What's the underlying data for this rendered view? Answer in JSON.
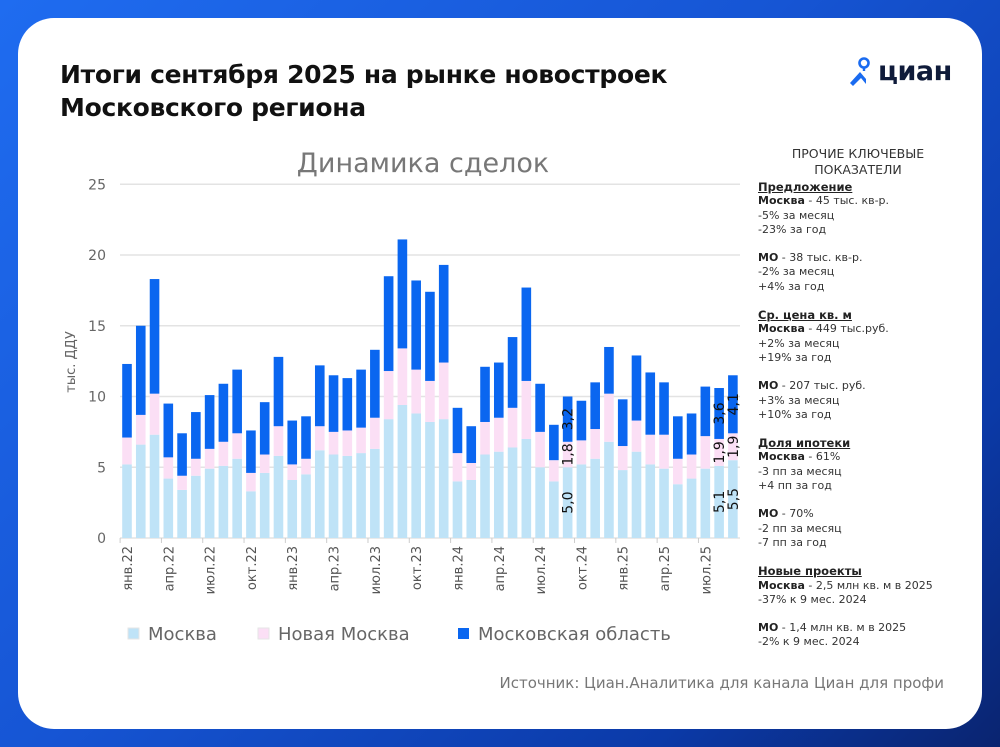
{
  "header": {
    "title_line1": "Итоги сентября 2025 на рынке новостроек",
    "title_line2": "Московского региона",
    "logo_text": "циан"
  },
  "chart_data": {
    "type": "bar",
    "stacked": true,
    "title": "Динамика сделок",
    "ylabel": "тыс. ДДУ",
    "xlabel": "",
    "ylim": [
      0,
      25
    ],
    "yticks": [
      0,
      5,
      10,
      15,
      20,
      25
    ],
    "grid": true,
    "legend_position": "bottom",
    "x": [
      "янв.22",
      "фев.22",
      "мар.22",
      "апр.22",
      "май.22",
      "июн.22",
      "июл.22",
      "авг.22",
      "сен.22",
      "окт.22",
      "ноя.22",
      "дек.22",
      "янв.23",
      "фев.23",
      "мар.23",
      "апр.23",
      "май.23",
      "июн.23",
      "июл.23",
      "авг.23",
      "сен.23",
      "окт.23",
      "ноя.23",
      "дек.23",
      "янв.24",
      "фев.24",
      "мар.24",
      "апр.24",
      "май.24",
      "июн.24",
      "июл.24",
      "авг.24",
      "сен.24",
      "окт.24",
      "ноя.24",
      "дек.24",
      "янв.25",
      "фев.25",
      "мар.25",
      "апр.25",
      "май.25",
      "июн.25",
      "июл.25",
      "авг.25",
      "сен.25"
    ],
    "tick_labels": [
      "янв.22",
      "апр.22",
      "июл.22",
      "окт.22",
      "янв.23",
      "апр.23",
      "июл.23",
      "окт.23",
      "янв.24",
      "апр.24",
      "июл.24",
      "окт.24",
      "янв.25",
      "апр.25",
      "июл.25"
    ],
    "series": [
      {
        "name": "Москва",
        "color": "#bfe3f7",
        "values": [
          5.2,
          6.6,
          7.3,
          4.2,
          3.4,
          4.4,
          4.9,
          5.1,
          5.6,
          3.3,
          4.6,
          5.8,
          4.1,
          4.5,
          6.2,
          5.9,
          5.8,
          6.0,
          6.3,
          8.4,
          9.4,
          8.8,
          8.2,
          8.4,
          4.0,
          4.1,
          5.9,
          6.1,
          6.4,
          7.0,
          5.0,
          4.0,
          5.0,
          5.2,
          5.6,
          6.8,
          4.8,
          6.1,
          5.2,
          4.9,
          3.8,
          4.2,
          4.9,
          5.1,
          5.5
        ]
      },
      {
        "name": "Новая Москва",
        "color": "#fbdff5",
        "values": [
          1.9,
          2.1,
          2.9,
          1.5,
          1.0,
          1.2,
          1.4,
          1.7,
          1.8,
          1.3,
          1.3,
          2.1,
          1.1,
          1.1,
          1.7,
          1.6,
          1.8,
          1.8,
          2.2,
          3.4,
          4.0,
          3.1,
          2.9,
          4.0,
          2.0,
          1.2,
          2.3,
          2.4,
          2.8,
          4.1,
          2.5,
          1.5,
          1.8,
          1.7,
          2.1,
          3.4,
          1.7,
          2.2,
          2.1,
          2.4,
          1.8,
          1.7,
          2.3,
          1.9,
          1.9
        ]
      },
      {
        "name": "Московская область",
        "color": "#0a66f0",
        "values": [
          5.2,
          6.3,
          8.1,
          3.8,
          3.0,
          3.3,
          3.8,
          4.1,
          4.5,
          3.0,
          3.7,
          4.9,
          3.1,
          3.0,
          4.3,
          4.0,
          3.7,
          4.1,
          4.8,
          6.7,
          7.7,
          6.3,
          6.3,
          6.9,
          3.2,
          2.6,
          3.9,
          3.9,
          5.0,
          6.6,
          3.4,
          2.5,
          3.2,
          2.8,
          3.3,
          3.3,
          3.3,
          4.6,
          4.4,
          3.7,
          3.0,
          2.9,
          3.5,
          3.6,
          4.1
        ]
      }
    ],
    "data_labels": [
      {
        "x": "сен.24",
        "values": [
          "5,0",
          "1,8",
          "3,2"
        ]
      },
      {
        "x": "авг.25",
        "values": [
          "5,1",
          "1,9",
          "3,6"
        ]
      },
      {
        "x": "сен.25",
        "values": [
          "5,5",
          "1,9",
          "4,1"
        ]
      }
    ]
  },
  "sidebar": {
    "title_line1": "ПРОЧИЕ КЛЮЧЕВЫЕ",
    "title_line2": "ПОКАЗАТЕЛИ",
    "sections": [
      {
        "heading": "Предложение",
        "blocks": [
          {
            "label": "Москва",
            "value": " - 45 тыс. кв-р.",
            "lines": [
              "-5% за месяц",
              "-23% за год"
            ]
          },
          {
            "label": "МО",
            "value": " - 38 тыс. кв-р.",
            "lines": [
              "-2% за месяц",
              "+4% за год"
            ]
          }
        ]
      },
      {
        "heading": "Ср. цена кв. м",
        "blocks": [
          {
            "label": "Москва",
            "value": " - 449 тыс.руб.",
            "lines": [
              "+2% за месяц",
              "+19% за год"
            ]
          },
          {
            "label": "МО",
            "value": " - 207 тыс. руб.",
            "lines": [
              "+3% за месяц",
              "+10% за год"
            ]
          }
        ]
      },
      {
        "heading": "Доля ипотеки",
        "blocks": [
          {
            "label": "Москва",
            "value": " - 61%",
            "lines": [
              "-3 пп за месяц",
              "+4 пп за год"
            ]
          },
          {
            "label": "МО",
            "value": " - 70%",
            "lines": [
              "-2 пп за месяц",
              "-7 пп за год"
            ]
          }
        ]
      },
      {
        "heading": "Новые проекты",
        "blocks": [
          {
            "label": "Москва",
            "value": " - 2,5 млн кв. м в 2025",
            "lines": [
              "-37% к 9 мес. 2024"
            ]
          },
          {
            "label": "МО",
            "value": " - 1,4 млн кв. м в 2025",
            "lines": [
              "-2% к 9 мес. 2024"
            ]
          }
        ]
      }
    ]
  },
  "footer": {
    "source": "Источник: Циан.Аналитика для канала Циан для профи"
  }
}
